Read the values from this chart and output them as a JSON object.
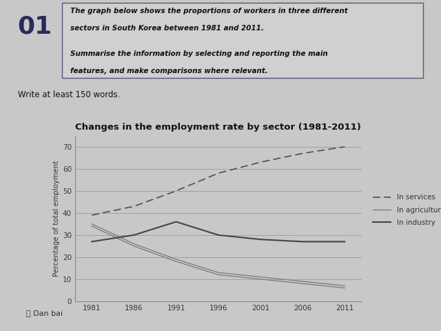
{
  "title": "Changes in the employment rate by sector (1981-2011)",
  "ylabel": "Percentage of total employment",
  "years": [
    1981,
    1986,
    1991,
    1996,
    2001,
    2006,
    2011
  ],
  "services": [
    39,
    43,
    50,
    58,
    63,
    67,
    70
  ],
  "agriculture": [
    34,
    25,
    18,
    12,
    10,
    8,
    6
  ],
  "industry": [
    27,
    30,
    36,
    30,
    28,
    27,
    27
  ],
  "ylim": [
    0,
    75
  ],
  "yticks": [
    0,
    10,
    20,
    30,
    40,
    50,
    60,
    70
  ],
  "services_label": "In services",
  "agriculture_label": "In agriculture",
  "industry_label": "In industry",
  "page_bg": "#c8c8c8",
  "plot_bg": "#c8c8c8",
  "line_color": "#555555",
  "number_label": "01",
  "instruction_line1": "The graph below shows the proportions of workers in three different",
  "instruction_line2": "sectors in South Korea between 1981 and 2011.",
  "instruction_line3": "Summarise the information by selecting and reporting the main",
  "instruction_line4": "features, and make comparisons where relevant.",
  "write_text": "Write at least 150 words.",
  "dan_bai": "Dan bai"
}
